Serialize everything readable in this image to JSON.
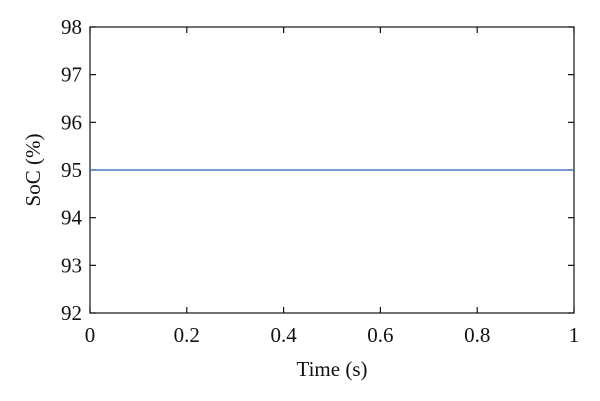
{
  "chart_data": {
    "type": "line",
    "title": "",
    "xlabel": "Time (s)",
    "ylabel": "SoC (%)",
    "xlim": [
      0,
      1
    ],
    "ylim": [
      92,
      98
    ],
    "xticks": [
      0,
      0.2,
      0.4,
      0.6,
      0.8,
      1
    ],
    "xtick_labels": [
      "0",
      "0.2",
      "0.4",
      "0.6",
      "0.8",
      "1"
    ],
    "yticks": [
      92,
      93,
      94,
      95,
      96,
      97,
      98
    ],
    "ytick_labels": [
      "92",
      "93",
      "94",
      "95",
      "96",
      "97",
      "98"
    ],
    "grid": false,
    "series": [
      {
        "x": [
          0,
          1
        ],
        "y": [
          95,
          95
        ],
        "color": "#4f7fc6"
      }
    ]
  }
}
